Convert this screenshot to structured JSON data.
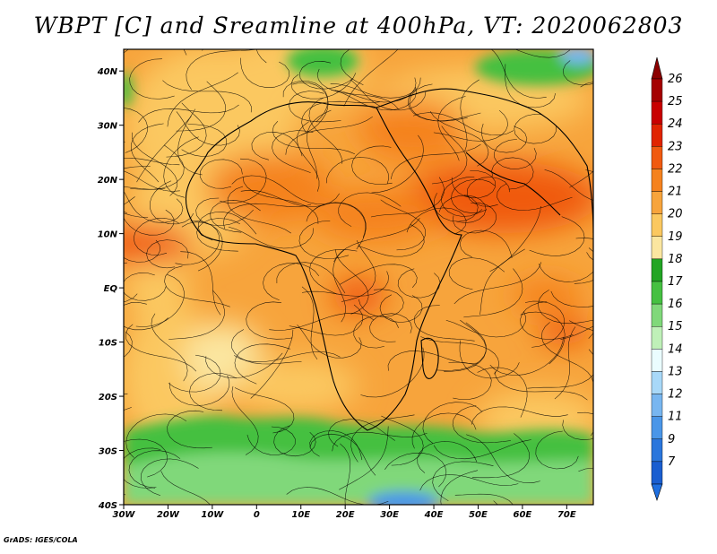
{
  "title": "WBPT [C] and Sreamline at 400hPa, VT: 2020062803",
  "map": {
    "variable": "Wet-bulb potential temperature",
    "units": "C",
    "level": "400hPa",
    "valid_time": "2020062803",
    "lon_range": [
      -30,
      76
    ],
    "lat_range": [
      -40,
      44
    ],
    "lat_ticks": [
      {
        "value": 40,
        "label": "40N"
      },
      {
        "value": 30,
        "label": "30N"
      },
      {
        "value": 20,
        "label": "20N"
      },
      {
        "value": 10,
        "label": "10N"
      },
      {
        "value": 0,
        "label": "EQ"
      },
      {
        "value": -10,
        "label": "10S"
      },
      {
        "value": -20,
        "label": "20S"
      },
      {
        "value": -30,
        "label": "30S"
      },
      {
        "value": -40,
        "label": "40S"
      }
    ],
    "lon_ticks": [
      {
        "value": -30,
        "label": "30W"
      },
      {
        "value": -20,
        "label": "20W"
      },
      {
        "value": -10,
        "label": "10W"
      },
      {
        "value": 0,
        "label": "0"
      },
      {
        "value": 10,
        "label": "10E"
      },
      {
        "value": 20,
        "label": "20E"
      },
      {
        "value": 30,
        "label": "30E"
      },
      {
        "value": 40,
        "label": "40E"
      },
      {
        "value": 50,
        "label": "50E"
      },
      {
        "value": 60,
        "label": "60E"
      },
      {
        "value": 70,
        "label": "70E"
      }
    ]
  },
  "colorbar": {
    "labels": [
      "26",
      "25",
      "24",
      "23",
      "22",
      "21",
      "20",
      "19",
      "18",
      "17",
      "16",
      "15",
      "14",
      "13",
      "12",
      "11",
      "9",
      "7"
    ],
    "colors": [
      "#a50000",
      "#c80000",
      "#e02400",
      "#f05a10",
      "#f5821e",
      "#f7a43c",
      "#fbc860",
      "#fbe6a0",
      "#22a524",
      "#45c041",
      "#80d87a",
      "#bff0b8",
      "#eafcff",
      "#a8d8f8",
      "#78b6f0",
      "#4a96e8",
      "#2a76dc",
      "#1a5ed0"
    ],
    "top_arrow_color": "#8c0000",
    "bottom_arrow_color": "#1f6fe0"
  },
  "credit": "GrADS: IGES/COLA"
}
